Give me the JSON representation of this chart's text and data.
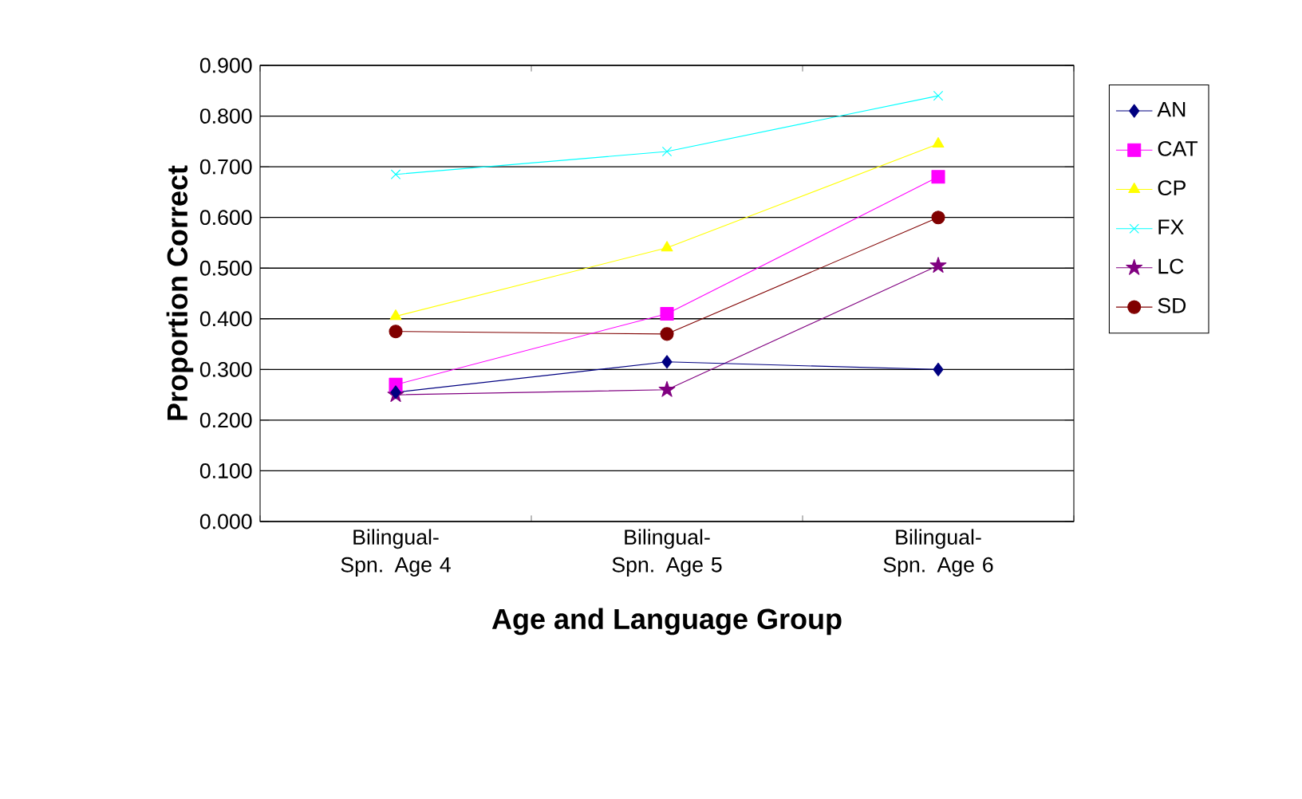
{
  "chart_data": {
    "type": "line",
    "xlabel": "Age and Language Group",
    "ylabel": "Proportion Correct",
    "categories": [
      "Bilingual-Spn. Age 4",
      "Bilingual-Spn. Age 5",
      "Bilingual-Spn. Age 6"
    ],
    "series": [
      {
        "name": "AN",
        "color": "#000080",
        "marker": "diamond",
        "values": [
          0.255,
          0.315,
          0.3
        ]
      },
      {
        "name": "CAT",
        "color": "#ff00ff",
        "marker": "square",
        "values": [
          0.27,
          0.41,
          0.68
        ]
      },
      {
        "name": "CP",
        "color": "#ffff00",
        "marker": "triangle",
        "values": [
          0.405,
          0.54,
          0.745
        ]
      },
      {
        "name": "FX",
        "color": "#00ffff",
        "marker": "cross",
        "values": [
          0.685,
          0.73,
          0.84
        ]
      },
      {
        "name": "LC",
        "color": "#800080",
        "marker": "star",
        "values": [
          0.25,
          0.26,
          0.505
        ]
      },
      {
        "name": "SD",
        "color": "#800000",
        "marker": "circle",
        "values": [
          0.375,
          0.37,
          0.6
        ]
      }
    ],
    "ylim": [
      0,
      0.9
    ],
    "yticks": [
      {
        "value": 0,
        "label": "0.000"
      },
      {
        "value": 0.1,
        "label": "0.100"
      },
      {
        "value": 0.2,
        "label": "0.200"
      },
      {
        "value": 0.3,
        "label": "0.300"
      },
      {
        "value": 0.4,
        "label": "0.400"
      },
      {
        "value": 0.5,
        "label": "0.500"
      },
      {
        "value": 0.6,
        "label": "0.600"
      },
      {
        "value": 0.7,
        "label": "0.700"
      },
      {
        "value": 0.8,
        "label": "0.800"
      },
      {
        "value": 0.9,
        "label": "0.900"
      }
    ],
    "grid": "y",
    "legend": "right",
    "line_style": "solid"
  }
}
